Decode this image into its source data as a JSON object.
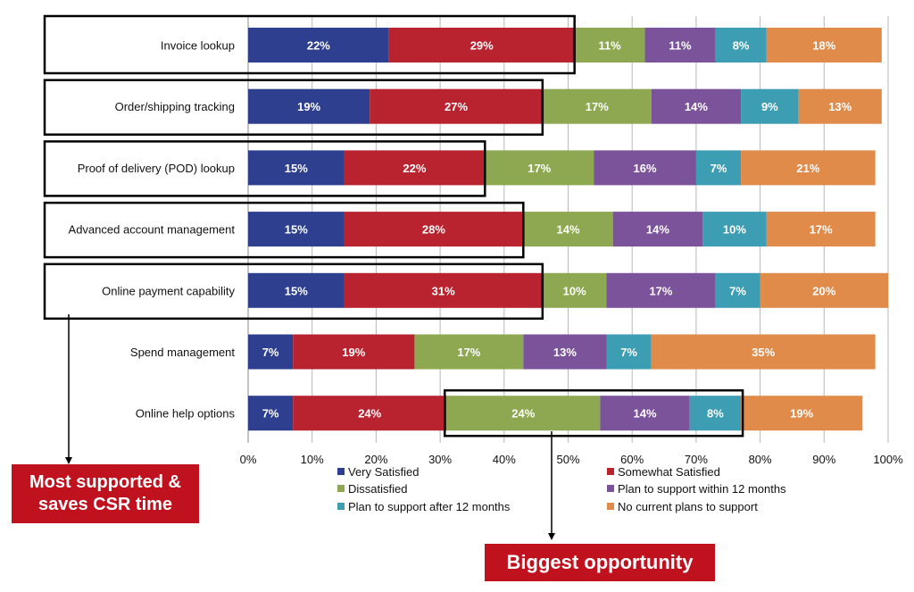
{
  "chart_data": {
    "type": "bar",
    "orientation": "horizontal",
    "stacked": true,
    "categories": [
      "Invoice lookup",
      "Order/shipping tracking",
      "Proof of delivery (POD) lookup",
      "Advanced account management",
      "Online payment capability",
      "Spend management",
      "Online help options"
    ],
    "series": [
      {
        "name": "Very Satisfied",
        "color": "#2e3f8f",
        "values": [
          22,
          19,
          15,
          15,
          15,
          7,
          7
        ]
      },
      {
        "name": "Somewhat Satisfied",
        "color": "#b8232f",
        "values": [
          29,
          27,
          22,
          28,
          31,
          19,
          24
        ]
      },
      {
        "name": "Dissatisfied",
        "color": "#8ea851",
        "values": [
          11,
          17,
          17,
          14,
          10,
          17,
          24
        ]
      },
      {
        "name": "Plan to support within 12 months",
        "color": "#7a539a",
        "values": [
          11,
          14,
          16,
          14,
          17,
          13,
          14
        ]
      },
      {
        "name": "Plan to support after 12 months",
        "color": "#3d9db3",
        "values": [
          8,
          9,
          7,
          10,
          7,
          7,
          8
        ]
      },
      {
        "name": "No current plans to support",
        "color": "#e08b4a",
        "values": [
          18,
          13,
          21,
          17,
          20,
          35,
          19
        ]
      }
    ],
    "xlim": [
      0,
      100
    ],
    "x_ticks": [
      "0%",
      "10%",
      "20%",
      "30%",
      "40%",
      "50%",
      "60%",
      "70%",
      "80%",
      "90%",
      "100%"
    ],
    "value_suffix": "%",
    "grid": "vertical",
    "legend_position": "bottom",
    "highlight_groups": [
      {
        "rows": [
          0,
          1,
          2,
          3,
          4
        ],
        "from_series": 0,
        "to_series": 1
      },
      {
        "rows": [
          6
        ],
        "from_series": 2,
        "to_series": 4
      }
    ]
  },
  "annotations": {
    "most_supported": "Most supported & saves CSR time",
    "biggest_opportunity": "Biggest opportunity"
  }
}
